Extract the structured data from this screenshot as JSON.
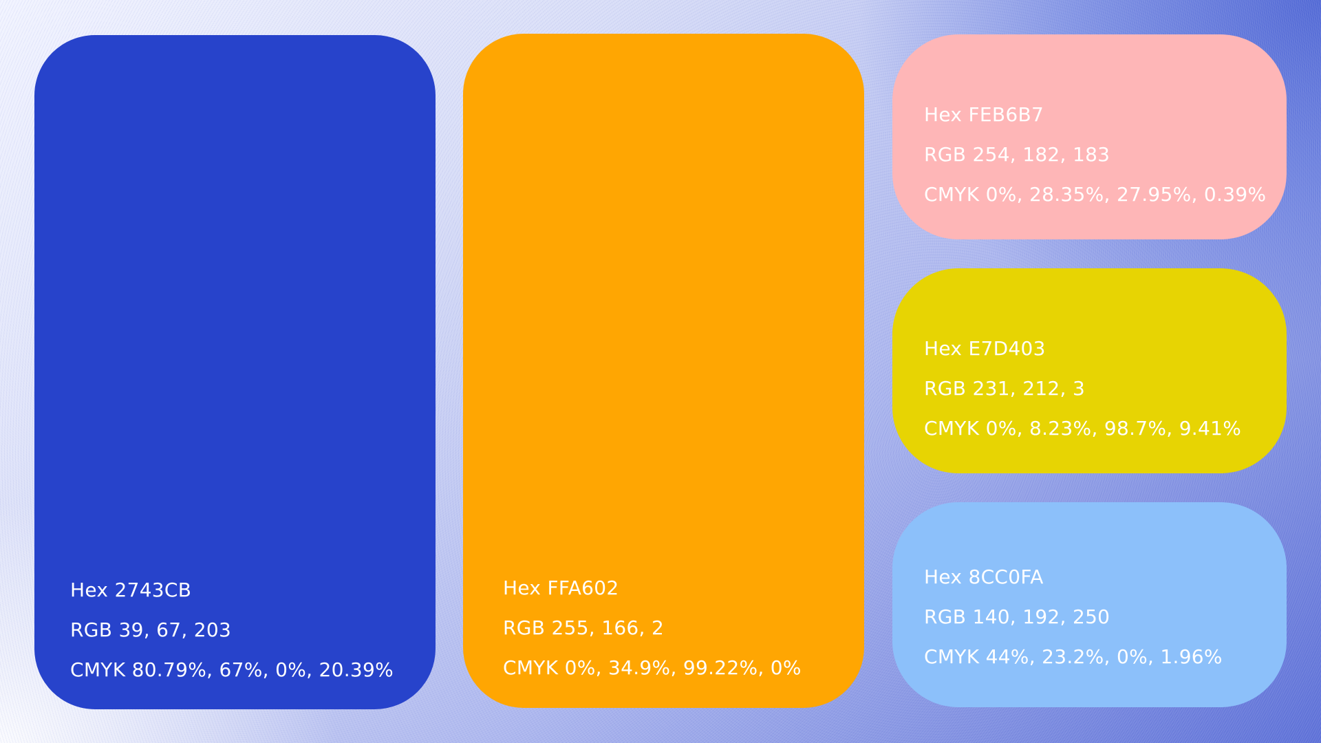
{
  "swatches": [
    {
      "id": "sw-blue",
      "color": "#2743CB",
      "hex": "Hex 2743CB",
      "rgb": "RGB 39, 67, 203",
      "cmyk": "CMYK 80.79%, 67%, 0%, 20.39%"
    },
    {
      "id": "sw-orange",
      "color": "#FFA602",
      "hex": "Hex FFA602",
      "rgb": "RGB 255, 166, 2",
      "cmyk": "CMYK 0%, 34.9%, 99.22%, 0%"
    },
    {
      "id": "sw-pink",
      "color": "#FEB6B7",
      "hex": "Hex FEB6B7",
      "rgb": "RGB 254, 182, 183",
      "cmyk": "CMYK 0%, 28.35%, 27.95%, 0.39%"
    },
    {
      "id": "sw-yellow",
      "color": "#E7D403",
      "hex": "Hex E7D403",
      "rgb": "RGB 231, 212, 3",
      "cmyk": "CMYK 0%, 8.23%, 98.7%, 9.41%"
    },
    {
      "id": "sw-lightblue",
      "color": "#8CC0FA",
      "hex": "Hex 8CC0FA",
      "rgb": "RGB 140, 192, 250",
      "cmyk": "CMYK 44%, 23.2%, 0%, 1.96%"
    }
  ]
}
